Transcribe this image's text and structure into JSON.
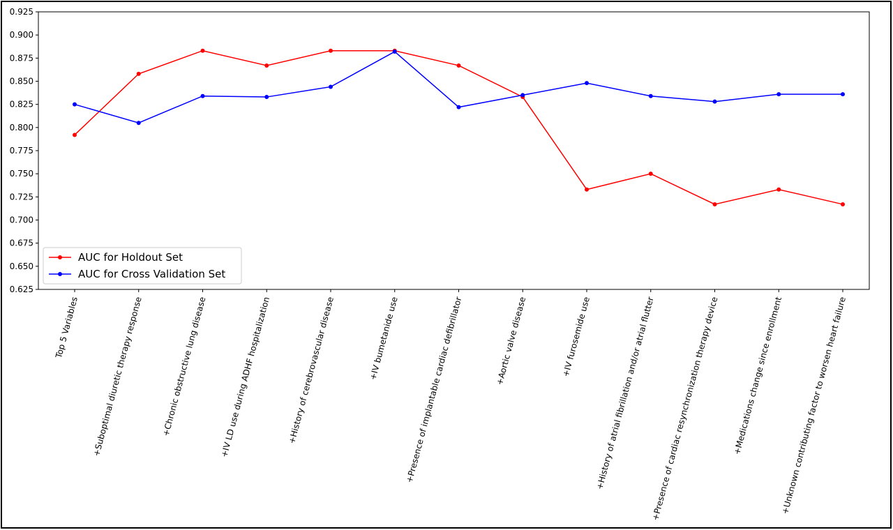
{
  "chart_data": {
    "type": "line",
    "categories": [
      "Top 5 Variables",
      "+Suboptimal diuretic therapy response",
      "+Chronic obstructive lung disease",
      "+IV LD use during ADHF hospitalization",
      "+History of cerebrovascular disease",
      "+IV bumetanide use",
      "+Presence of implantable cardiac defibrillator",
      "+Aortic valve disease",
      "+IV furosemide use",
      "+History of atrial fibrillation and/or atrial flutter",
      "+Presence of cardiac resynchronization therapy device",
      "+Medications change since enrollment",
      "+Unknown contributing factor to worsen heart failure"
    ],
    "series": [
      {
        "name": "AUC for Holdout Set",
        "color": "#ff0000",
        "values": [
          0.792,
          0.858,
          0.883,
          0.867,
          0.883,
          0.883,
          0.867,
          0.833,
          0.733,
          0.75,
          0.717,
          0.733,
          0.717
        ]
      },
      {
        "name": "AUC for Cross Validation Set",
        "color": "#0000ff",
        "values": [
          0.825,
          0.805,
          0.834,
          0.833,
          0.844,
          0.882,
          0.822,
          0.835,
          0.848,
          0.834,
          0.828,
          0.836,
          0.836
        ]
      }
    ],
    "ylim": [
      0.625,
      0.925
    ],
    "yticks": [
      0.625,
      {
        "value": 0.65,
        "label": "0.650"
      },
      0.675,
      {
        "value": 0.7,
        "label": "0.700"
      },
      0.725,
      {
        "value": 0.75,
        "label": "0.750"
      },
      0.775,
      {
        "value": 0.8,
        "label": "0.800"
      },
      0.825,
      {
        "value": 0.85,
        "label": "0.850"
      },
      0.875,
      {
        "value": 0.9,
        "label": "0.900"
      },
      0.925
    ],
    "legend": "lower left"
  }
}
